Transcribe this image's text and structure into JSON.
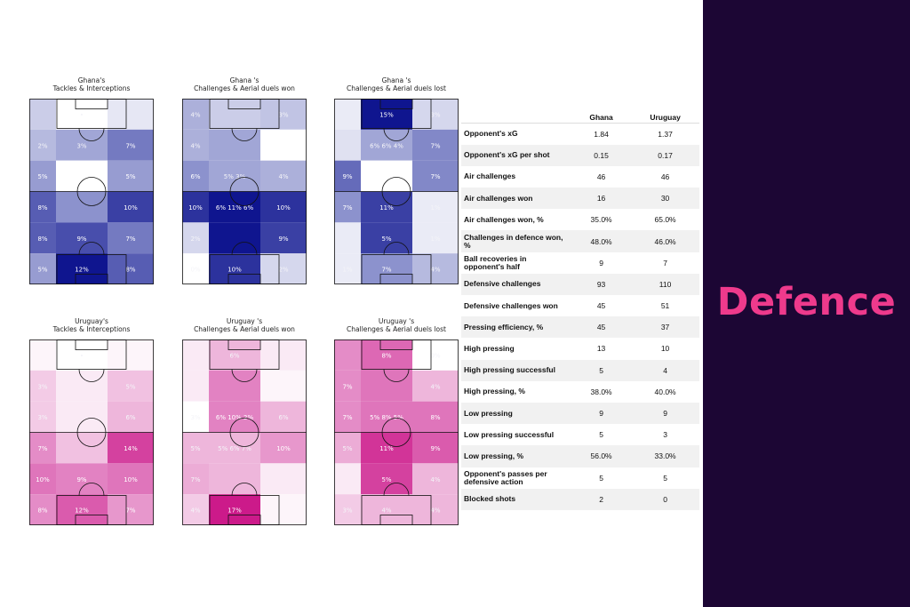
{
  "chart_data": [
    {
      "type": "heatmap",
      "title": "Ghana's\nTackles & Interceptions",
      "colormap": "blue",
      "values": [
        [
          "",
          "•",
          ""
        ],
        [
          "2%",
          "3%",
          "7%"
        ],
        [
          "5%",
          "",
          "5%"
        ],
        [
          "8%",
          "",
          "10%"
        ],
        [
          "8%",
          "9%",
          "7%"
        ],
        [
          "5%",
          "12%",
          "8%"
        ]
      ],
      "intensity": [
        [
          0.25,
          0.0,
          0.12
        ],
        [
          0.35,
          0.45,
          0.65
        ],
        [
          0.5,
          0.0,
          0.5
        ],
        [
          0.75,
          0.55,
          0.85
        ],
        [
          0.75,
          0.8,
          0.65
        ],
        [
          0.5,
          1.0,
          0.75
        ]
      ]
    },
    {
      "type": "heatmap",
      "title": "Ghana 's\nChallenges & Aerial duels won",
      "colormap": "blue",
      "values": [
        [
          "4%",
          "",
          "3%"
        ],
        [
          "4%",
          "",
          ""
        ],
        [
          "6%",
          "5%  3%",
          "4%"
        ],
        [
          "10%",
          "6%  11%  6%",
          "10%"
        ],
        [
          "2%",
          "",
          "9%"
        ],
        [
          "0%",
          "10%",
          "2%"
        ]
      ],
      "intensity": [
        [
          0.4,
          0.25,
          0.3
        ],
        [
          0.4,
          0.45,
          0.0
        ],
        [
          0.55,
          0.45,
          0.4
        ],
        [
          0.9,
          1.0,
          0.9
        ],
        [
          0.2,
          1.0,
          0.85
        ],
        [
          0.0,
          0.9,
          0.2
        ]
      ]
    },
    {
      "type": "heatmap",
      "title": "Ghana 's\nChallenges & Aerial duels lost",
      "colormap": "blue",
      "values": [
        [
          "",
          "15%",
          "3%"
        ],
        [
          "",
          "6%  6%  4%",
          "7%"
        ],
        [
          "9%",
          "",
          "7%"
        ],
        [
          "7%",
          "11%",
          "1%"
        ],
        [
          "",
          "5%",
          "1%"
        ],
        [
          "1%",
          "7%",
          "4%"
        ]
      ],
      "intensity": [
        [
          0.1,
          1.0,
          0.2
        ],
        [
          0.15,
          0.45,
          0.6
        ],
        [
          0.7,
          0.0,
          0.6
        ],
        [
          0.55,
          0.85,
          0.1
        ],
        [
          0.1,
          0.85,
          0.1
        ],
        [
          0.1,
          0.55,
          0.35
        ]
      ]
    },
    {
      "type": "heatmap",
      "title": "Uruguay's\nTackles & Interceptions",
      "colormap": "pink",
      "values": [
        [
          "",
          "•",
          ""
        ],
        [
          "3%",
          "",
          "5%"
        ],
        [
          "3%",
          "",
          "6%"
        ],
        [
          "7%",
          "",
          "14%"
        ],
        [
          "10%",
          "9%",
          "10%"
        ],
        [
          "8%",
          "12%",
          "7%"
        ]
      ],
      "intensity": [
        [
          0.05,
          0.0,
          0.05
        ],
        [
          0.25,
          0.1,
          0.3
        ],
        [
          0.25,
          0.1,
          0.35
        ],
        [
          0.55,
          0.3,
          0.85
        ],
        [
          0.65,
          0.6,
          0.65
        ],
        [
          0.55,
          0.75,
          0.5
        ]
      ]
    },
    {
      "type": "heatmap",
      "title": "Uruguay 's\nChallenges & Aerial duels won",
      "colormap": "pink",
      "values": [
        [
          "",
          "6%",
          ""
        ],
        [
          "",
          "",
          ""
        ],
        [
          "3%",
          "6%  10%  2%",
          "6%"
        ],
        [
          "5%",
          "5%  6%  7%",
          "10%"
        ],
        [
          "7%",
          "",
          ""
        ],
        [
          "4%",
          "17%",
          ""
        ]
      ],
      "intensity": [
        [
          0.1,
          0.35,
          0.1
        ],
        [
          0.1,
          0.6,
          0.05
        ],
        [
          0.0,
          0.6,
          0.35
        ],
        [
          0.35,
          0.35,
          0.5
        ],
        [
          0.4,
          0.35,
          0.1
        ],
        [
          0.25,
          1.0,
          0.05
        ]
      ]
    },
    {
      "type": "heatmap",
      "title": "Uruguay 's\nChallenges & Aerial duels lost",
      "colormap": "pink",
      "values": [
        [
          "",
          "8%",
          "0%"
        ],
        [
          "7%",
          "",
          "4%"
        ],
        [
          "7%",
          "5%  8%  5%",
          "8%"
        ],
        [
          "5%",
          "11%",
          "9%"
        ],
        [
          "",
          "5%",
          "4%"
        ],
        [
          "3%",
          "4%",
          "4%"
        ]
      ],
      "intensity": [
        [
          0.55,
          0.7,
          0.0
        ],
        [
          0.55,
          0.65,
          0.35
        ],
        [
          0.55,
          0.65,
          0.65
        ],
        [
          0.4,
          0.9,
          0.75
        ],
        [
          0.1,
          0.85,
          0.35
        ],
        [
          0.25,
          0.35,
          0.35
        ]
      ]
    }
  ],
  "stats": {
    "columns": [
      "Ghana",
      "Uruguay"
    ],
    "rows": [
      {
        "metric": "Opponent's xG",
        "ghana": "1.84",
        "uruguay": "1.37"
      },
      {
        "metric": "Opponent's xG per shot",
        "ghana": "0.15",
        "uruguay": "0.17"
      },
      {
        "metric": "Air challenges",
        "ghana": "46",
        "uruguay": "46"
      },
      {
        "metric": "Air challenges won",
        "ghana": "16",
        "uruguay": "30"
      },
      {
        "metric": "Air challenges won, %",
        "ghana": "35.0%",
        "uruguay": "65.0%"
      },
      {
        "metric": "Challenges in defence won, %",
        "ghana": "48.0%",
        "uruguay": "46.0%"
      },
      {
        "metric": "Ball recoveries in opponent's half",
        "ghana": "9",
        "uruguay": "7"
      },
      {
        "metric": "Defensive challenges",
        "ghana": "93",
        "uruguay": "110"
      },
      {
        "metric": "Defensive challenges won",
        "ghana": "45",
        "uruguay": "51"
      },
      {
        "metric": "Pressing efficiency, %",
        "ghana": "45",
        "uruguay": "37"
      },
      {
        "metric": "High pressing",
        "ghana": "13",
        "uruguay": "10"
      },
      {
        "metric": "High pressing successful",
        "ghana": "5",
        "uruguay": "4"
      },
      {
        "metric": "High pressing, %",
        "ghana": "38.0%",
        "uruguay": "40.0%"
      },
      {
        "metric": "Low pressing",
        "ghana": "9",
        "uruguay": "9"
      },
      {
        "metric": "Low pressing successful",
        "ghana": "5",
        "uruguay": "3"
      },
      {
        "metric": "Low pressing, %",
        "ghana": "56.0%",
        "uruguay": "33.0%"
      },
      {
        "metric": "Opponent's passes per defensive action",
        "ghana": "5",
        "uruguay": "5"
      },
      {
        "metric": "Blocked shots",
        "ghana": "2",
        "uruguay": "0"
      }
    ]
  },
  "sidebar": {
    "title": "Defence"
  },
  "colors": {
    "sidebar_bg": "#1c0634",
    "title_accent": "#ee3a8c",
    "ghana_max": "#0f158f",
    "uruguay_max": "#cc1a8a"
  }
}
